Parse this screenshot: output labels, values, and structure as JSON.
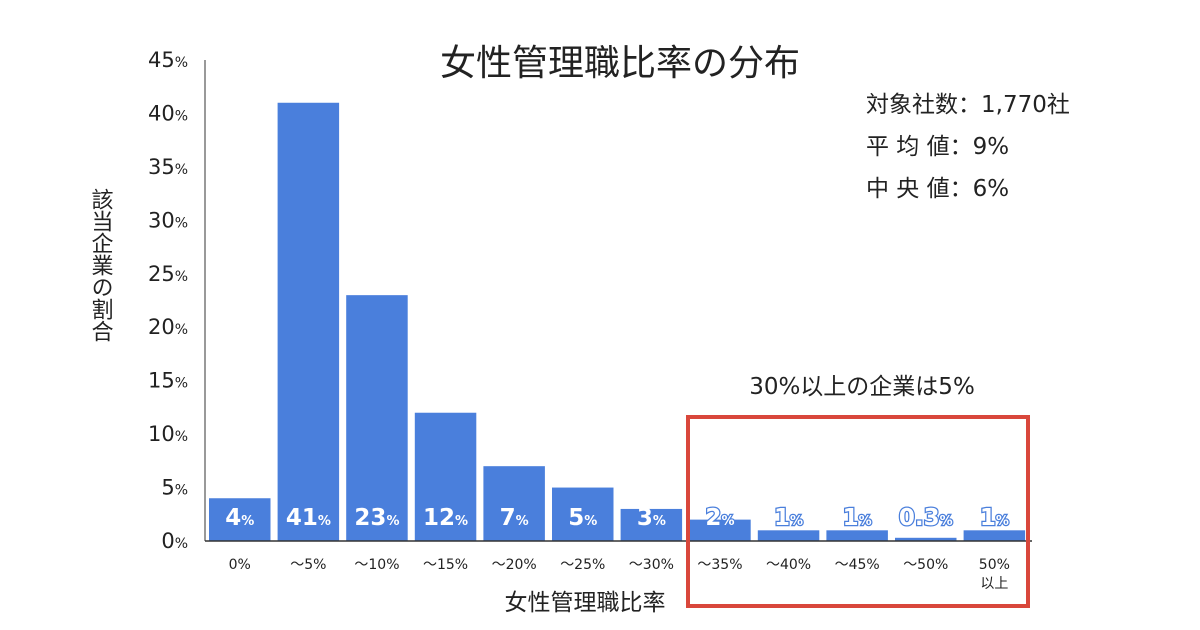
{
  "chart_data": {
    "type": "bar",
    "title": "女性管理職比率の分布",
    "xlabel": "女性管理職比率",
    "ylabel": "該当企業の割合",
    "ylim": [
      0,
      45
    ],
    "yticks": [
      0,
      5,
      10,
      15,
      20,
      25,
      30,
      35,
      40,
      45
    ],
    "ytick_unit": "%",
    "categories": [
      "0%",
      "～5%",
      "～10%",
      "～15%",
      "～20%",
      "～25%",
      "～30%",
      "～35%",
      "～40%",
      "～45%",
      "～50%",
      "50%以上"
    ],
    "values": [
      4,
      41,
      23,
      12,
      7,
      5,
      3,
      2,
      1,
      1,
      0.3,
      1
    ],
    "value_labels": [
      "4",
      "41",
      "23",
      "12",
      "7",
      "5",
      "3",
      "2",
      "1",
      "1",
      "0.3",
      "1"
    ],
    "value_unit": "%",
    "bar_color": "#4a7fdc",
    "highlight_color": "#d9473b",
    "stats": [
      {
        "label": "対象社数",
        "value": "1,770社"
      },
      {
        "label": "平 均 値",
        "value": "9%"
      },
      {
        "label": "中 央 値",
        "value": "6%"
      }
    ],
    "callout": "30%以上の企業は5%",
    "grid": false,
    "legend": "none"
  }
}
